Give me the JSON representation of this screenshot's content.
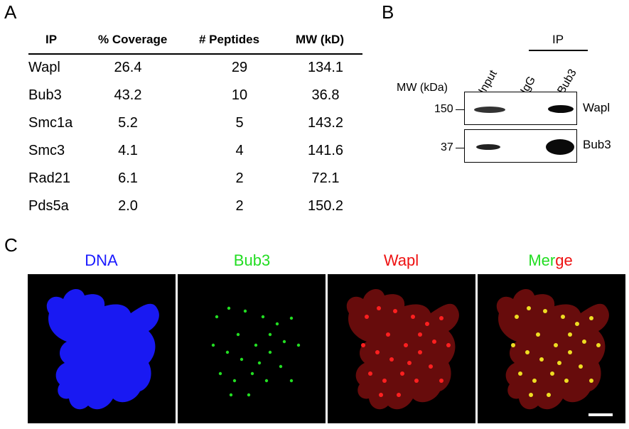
{
  "panels": {
    "a": "A",
    "b": "B",
    "c": "C"
  },
  "table": {
    "headers": [
      "IP",
      "% Coverage",
      "# Peptides",
      "MW (kD)"
    ],
    "rows": [
      {
        "ip": "Wapl",
        "coverage": "26.4",
        "peptides": "29",
        "mw": "134.1"
      },
      {
        "ip": "Bub3",
        "coverage": "43.2",
        "peptides": "10",
        "mw": "36.8"
      },
      {
        "ip": "Smc1a",
        "coverage": "5.2",
        "peptides": "5",
        "mw": "143.2"
      },
      {
        "ip": "Smc3",
        "coverage": "4.1",
        "peptides": "4",
        "mw": "141.6"
      },
      {
        "ip": "Rad21",
        "coverage": "6.1",
        "peptides": "2",
        "mw": "72.1"
      },
      {
        "ip": "Pds5a",
        "coverage": "2.0",
        "peptides": "2",
        "mw": "150.2"
      }
    ]
  },
  "blot": {
    "ip_label": "IP",
    "lanes": [
      "Input",
      "IgG",
      "Bub3"
    ],
    "mw_title": "MW (kDa)",
    "markers": [
      "150",
      "37"
    ],
    "targets": [
      "Wapl",
      "Bub3"
    ]
  },
  "images": {
    "titles": [
      "DNA",
      "Bub3",
      "Wapl"
    ],
    "merge_title": {
      "part1": "Merge",
      "green_part": "Mer",
      "red_part": "ge"
    },
    "colors": {
      "dna": "#1a1aff",
      "bub3": "#22dd22",
      "wapl": "#ee1111"
    }
  }
}
